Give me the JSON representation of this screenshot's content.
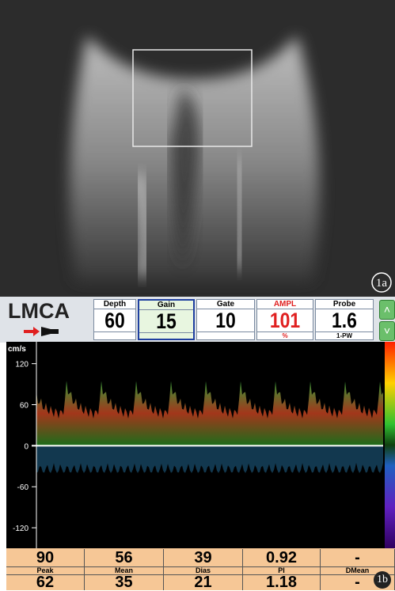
{
  "image": {
    "label": "1a"
  },
  "doppler": {
    "vessel": "LMCA",
    "settings": [
      {
        "label": "Depth",
        "value": "60",
        "sub": null
      },
      {
        "label": "Gain",
        "value": "15",
        "sub": null
      },
      {
        "label": "Gate",
        "value": "10",
        "sub": null
      },
      {
        "label": "AMPL",
        "value": "101",
        "sub": "%"
      },
      {
        "label": "Probe",
        "value": "1.6",
        "sub": "1-PW"
      }
    ],
    "spectrum": {
      "unit": "cm/s",
      "ylim": [
        -150,
        152
      ],
      "yticks": [
        120,
        60,
        0,
        -60,
        -120
      ]
    },
    "table": {
      "row1": [
        "90",
        "56",
        "39",
        "0.92",
        "-"
      ],
      "labels": [
        "Peak",
        "Mean",
        "Dias",
        "PI",
        "DMean"
      ],
      "row2": [
        "62",
        "35",
        "21",
        "1.18",
        "-"
      ]
    },
    "label": "1b"
  }
}
